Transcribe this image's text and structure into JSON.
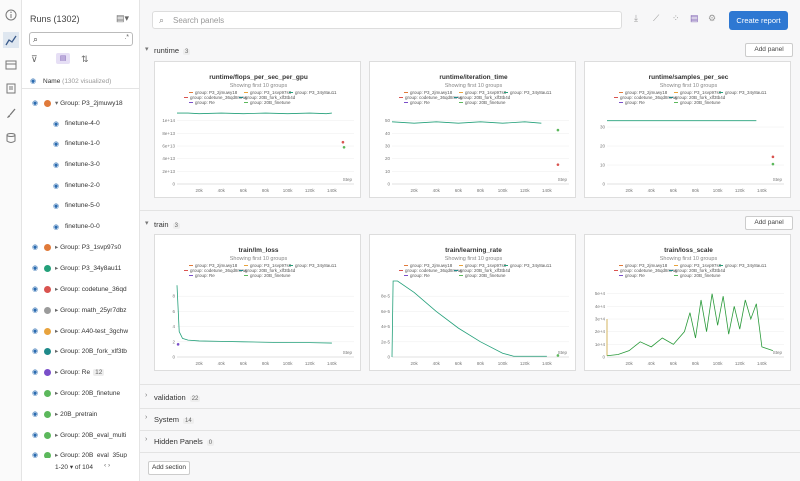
{
  "rail": {
    "icons": [
      "info-icon",
      "chart-icon",
      "table-icon",
      "clipboard-icon",
      "brush-icon",
      "database-icon"
    ]
  },
  "runs": {
    "title": "Runs (1302)",
    "search_value": "",
    "name_header": "Name",
    "visualized": "(1302 visualized)",
    "items": [
      {
        "label": "Group: P3_2jmuwy18",
        "color": "#e07a3a",
        "child": false,
        "caret": "▾"
      },
      {
        "label": "finetune-4-0",
        "child": true
      },
      {
        "label": "finetune-1-0",
        "child": true
      },
      {
        "label": "finetune-3-0",
        "child": true
      },
      {
        "label": "finetune-2-0",
        "child": true
      },
      {
        "label": "finetune-5-0",
        "child": true
      },
      {
        "label": "finetune-0-0",
        "child": true
      },
      {
        "label": "Group: P3_1svp97s0",
        "color": "#e07a3a",
        "child": false,
        "caret": "▸"
      },
      {
        "label": "Group: P3_34y8au11",
        "color": "#24a07a",
        "child": false,
        "caret": "▸"
      },
      {
        "label": "Group: codetune_36qd",
        "color": "#d9534f",
        "child": false,
        "caret": "▸"
      },
      {
        "label": "Group: math_25yr7dbz",
        "color": "#9b9b9b",
        "child": false,
        "caret": "▸"
      },
      {
        "label": "Group: A40-test_3gchw",
        "color": "#e8a33d",
        "child": false,
        "caret": "▸"
      },
      {
        "label": "Group: 20B_fork_xlf3tb",
        "color": "#1f8a8a",
        "child": false,
        "caret": "▸"
      },
      {
        "label": "Group: Re",
        "color": "#7a4fc9",
        "child": false,
        "caret": "▸",
        "badge": "12"
      },
      {
        "label": "Group: 20B_finetune",
        "color": "#5cb85c",
        "child": false,
        "caret": "▸"
      },
      {
        "label": "20B_pretrain",
        "color": "#5cb85c",
        "child": false,
        "caret": "▸"
      },
      {
        "label": "Group: 20B_eval_multi",
        "color": "#5cb85c",
        "child": false,
        "caret": "▸"
      },
      {
        "label": "Group: 20B_eval_35up",
        "color": "#5cb85c",
        "child": false,
        "caret": "▸"
      }
    ],
    "pager": {
      "range": "1-20",
      "of": "of 104"
    }
  },
  "toolbar": {
    "search_placeholder": "Search panels",
    "create_report": "Create report"
  },
  "sections": [
    {
      "name": "runtime",
      "count": "3",
      "add": "Add panel"
    },
    {
      "name": "train",
      "count": "3",
      "add": "Add panel"
    },
    {
      "name": "validation",
      "count": "22"
    },
    {
      "name": "System",
      "count": "14"
    },
    {
      "name": "Hidden Panels",
      "count": "0"
    }
  ],
  "add_section": "Add section",
  "chart_data": [
    {
      "type": "line",
      "title": "runtime/flops_per_sec_per_gpu",
      "subtitle": "Showing first 10 groups",
      "xlabel": "Step",
      "ylim": [
        0,
        120000000000000.0
      ],
      "yticks": [
        "0",
        "2e+13",
        "4e+13",
        "6e+13",
        "8e+13",
        "1e+14"
      ],
      "legend": [
        "group: P3_2jmuwy18",
        "group: P3_1svp97s0",
        "group: P3_34y8au11",
        "group: codetune_36qd8mnw",
        "group: 20B_fork_xlf3tb4d",
        "group: Re",
        "group: 20B_finetune"
      ],
      "series": [
        {
          "name": "group: P3_34y8au11",
          "color": "#24a07a",
          "x": [
            0,
            10000,
            20000,
            40000,
            60000,
            80000,
            100000,
            120000,
            135000,
            140000
          ],
          "y": [
            112000000000000.0,
            112000000000000.0,
            111000000000000.0,
            112000000000000.0,
            111000000000000.0,
            112000000000000.0,
            111000000000000.0,
            112000000000000.0,
            111000000000000.0,
            112000000000000.0
          ]
        },
        {
          "name": "group: codetune_36qd8mnw",
          "color": "#d9534f",
          "x": [
            150000
          ],
          "y": [
            66000000000000.0
          ]
        },
        {
          "name": "group: 20B_finetune",
          "color": "#5cb85c",
          "x": [
            151000
          ],
          "y": [
            58000000000000.0
          ]
        }
      ]
    },
    {
      "type": "line",
      "title": "runtime/iteration_time",
      "subtitle": "Showing first 10 groups",
      "xlabel": "Step",
      "ylim": [
        0,
        55
      ],
      "yticks": [
        "0",
        "10",
        "20",
        "30",
        "40",
        "50"
      ],
      "legend": [
        "group: P3_2jmuwy18",
        "group: P3_1svp97s0",
        "group: P3_34y8au11",
        "group: codetune_36qd8mnw",
        "group: 20B_fork_xlf3tb4d",
        "group: Re",
        "group: 20B_finetune"
      ],
      "series": [
        {
          "name": "group: P3_34y8au11",
          "color": "#24a07a",
          "x": [
            0,
            20000,
            40000,
            60000,
            80000,
            100000,
            120000,
            135000
          ],
          "y": [
            45,
            44,
            45,
            44,
            45,
            44,
            45,
            44
          ]
        },
        {
          "name": "group: 20B_finetune",
          "color": "#5cb85c",
          "x": [
            150000
          ],
          "y": [
            39
          ]
        },
        {
          "name": "group: codetune_36qd8mnw",
          "color": "#d9534f",
          "x": [
            150000
          ],
          "y": [
            14
          ]
        }
      ]
    },
    {
      "type": "line",
      "title": "runtime/samples_per_sec",
      "subtitle": "Showing first 10 groups",
      "xlabel": "Step",
      "ylim": [
        0,
        42
      ],
      "yticks": [
        "0",
        "10",
        "20",
        "30"
      ],
      "legend": [
        "group: P3_2jmuwy18",
        "group: P3_1svp97s0",
        "group: P3_34y8au11",
        "group: codetune_36qd8mnw",
        "group: 20B_fork_xlf3tb4d",
        "group: Re",
        "group: 20B_finetune"
      ],
      "series": [
        {
          "name": "group: P3_34y8au11",
          "color": "#24a07a",
          "x": [
            0,
            20000,
            40000,
            60000,
            80000,
            100000,
            120000,
            135000
          ],
          "y": [
            35,
            35,
            35,
            35,
            35,
            35,
            35,
            35
          ]
        },
        {
          "name": "group: codetune_36qd8mnw",
          "color": "#d9534f",
          "x": [
            150000
          ],
          "y": [
            15
          ]
        },
        {
          "name": "group: 20B_finetune",
          "color": "#5cb85c",
          "x": [
            150000
          ],
          "y": [
            11
          ]
        }
      ]
    },
    {
      "type": "line",
      "title": "train/lm_loss",
      "subtitle": "Showing first 10 groups",
      "xlabel": "Step",
      "ylim": [
        0,
        9
      ],
      "yticks": [
        "0",
        "2",
        "4",
        "6",
        "8"
      ],
      "legend": [
        "group: P3_2jmuwy18",
        "group: P3_1svp97s0",
        "group: P3_34y8au11",
        "group: codetune_36qd8mnw",
        "group: 20B_fork_xlf3tb4d",
        "group: Re",
        "group: 20B_finetune"
      ],
      "series": [
        {
          "name": "group: 20B_finetune",
          "color": "#24a07a",
          "x": [
            0,
            2000,
            5000,
            10000,
            20000,
            40000,
            60000,
            80000,
            100000,
            120000,
            140000
          ],
          "y": [
            8.5,
            3,
            2.2,
            2.0,
            1.9,
            1.85,
            1.8,
            1.75,
            1.7,
            1.7,
            1.65
          ]
        },
        {
          "name": "group: Re",
          "color": "#7a4fc9",
          "x": [
            1000
          ],
          "y": [
            1.5
          ]
        }
      ]
    },
    {
      "type": "line",
      "title": "train/learning_rate",
      "subtitle": "Showing first 10 groups",
      "xlabel": "Step",
      "ylim": [
        0,
        0.0001
      ],
      "yticks": [
        "0",
        "2e-5",
        "4e-5",
        "6e-5",
        "8e-5"
      ],
      "legend": [
        "group: P3_2jmuwy18",
        "group: P3_1svp97s0",
        "group: P3_34y8au11",
        "group: codetune_36qd8mnw",
        "group: 20B_fork_xlf3tb4d",
        "group: Re",
        "group: 20B_finetune"
      ],
      "series": [
        {
          "name": "group: 20B_finetune",
          "color": "#24a07a",
          "x": [
            0,
            1000,
            5000,
            20000,
            40000,
            60000,
            80000,
            100000,
            110000,
            140000
          ],
          "y": [
            0,
            0.0001,
            0.0001,
            8.5e-05,
            6e-05,
            3.8e-05,
            2e-05,
            5e-06,
            1e-06,
            1e-06
          ]
        },
        {
          "name": "group: codetune_36qd8mnw",
          "color": "#5cb85c",
          "x": [
            150000
          ],
          "y": [
            2e-06
          ]
        }
      ]
    },
    {
      "type": "line",
      "title": "train/loss_scale",
      "subtitle": "Showing first 10 groups",
      "xlabel": "Step",
      "ylim": [
        0,
        60000
      ],
      "yticks": [
        "0",
        "1e+4",
        "2e+4",
        "3e+4",
        "4e+4",
        "5e+4"
      ],
      "legend": [
        "group: P3_2jmuwy18",
        "group: P3_1svp97s0",
        "group: P3_34y8au11",
        "group: codetune_36qd8mnw",
        "group: 20B_fork_xlf3tb4d",
        "group: Re",
        "group: 20B_finetune"
      ],
      "series": [
        {
          "name": "group: 20B_finetune",
          "color": "#2a9a3a",
          "x": [
            0,
            10000,
            20000,
            30000,
            40000,
            50000,
            60000,
            70000,
            75000,
            80000,
            85000,
            90000,
            95000,
            100000,
            105000,
            110000,
            115000,
            120000,
            125000,
            130000,
            135000,
            140000,
            150000
          ],
          "y": [
            1000,
            2000,
            5000,
            12000,
            8000,
            15000,
            10000,
            20000,
            35000,
            15000,
            45000,
            20000,
            50000,
            25000,
            48000,
            18000,
            40000,
            22000,
            45000,
            30000,
            42000,
            8000,
            5000
          ]
        },
        {
          "name": "group: Re",
          "color": "#c9a23a",
          "x": [
            0,
            0,
            0
          ],
          "y": [
            30000,
            10000,
            1000
          ]
        }
      ]
    }
  ]
}
